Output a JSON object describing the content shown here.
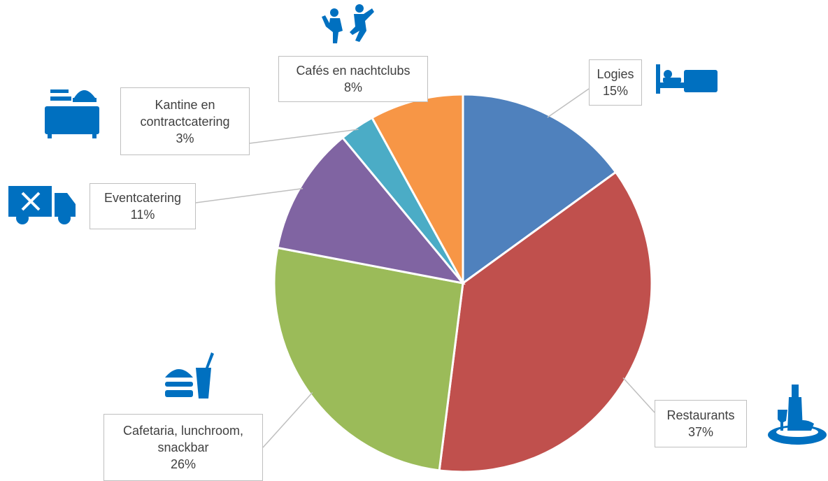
{
  "chart_data": {
    "type": "pie",
    "categories": [
      "Logies",
      "Restaurants",
      "Cafetaria, lunchroom, snackbar",
      "Eventcatering",
      "Kantine en contractcatering",
      "Cafés en nachtclubs"
    ],
    "values": [
      15,
      37,
      26,
      11,
      3,
      8
    ],
    "value_labels": [
      "15%",
      "37%",
      "26%",
      "11%",
      "3%",
      "8%"
    ],
    "colors": [
      "#4f81bd",
      "#c0504d",
      "#9bbb59",
      "#8064a2",
      "#4bacc6",
      "#f79646"
    ]
  }
}
